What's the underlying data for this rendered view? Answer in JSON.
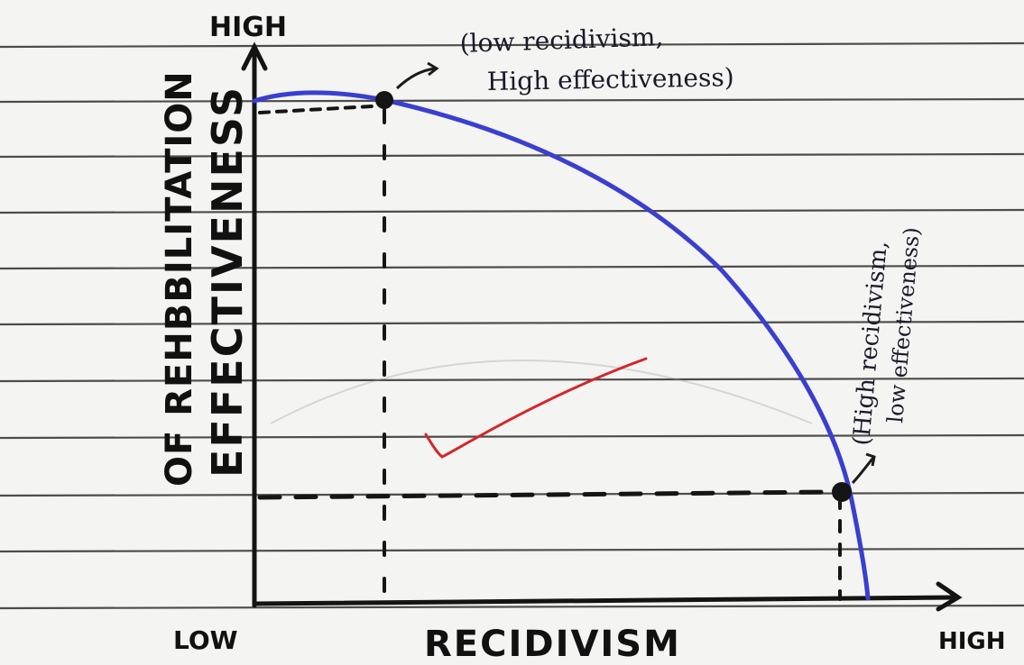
{
  "diagram": {
    "y_axis": {
      "top_label": "HIGH",
      "title_line1": "OF REHBBILITATION",
      "title_line2": "EFFECTIVENESS"
    },
    "x_axis": {
      "left_label": "LOW",
      "title": "RECIDIVISM",
      "right_label": "HIGH"
    },
    "annotations": {
      "point_a_line1": "(low recidivism,",
      "point_a_line2": "High effectiveness)",
      "point_b_line1": "(High recidivism,",
      "point_b_line2": "low effectiveness)"
    },
    "colors": {
      "curve": "#3a3fd0",
      "axes": "#141414",
      "checkmark": "#d4262a",
      "ruled_lines": "#2a2a2a",
      "paper": "#f4f4f2"
    }
  }
}
